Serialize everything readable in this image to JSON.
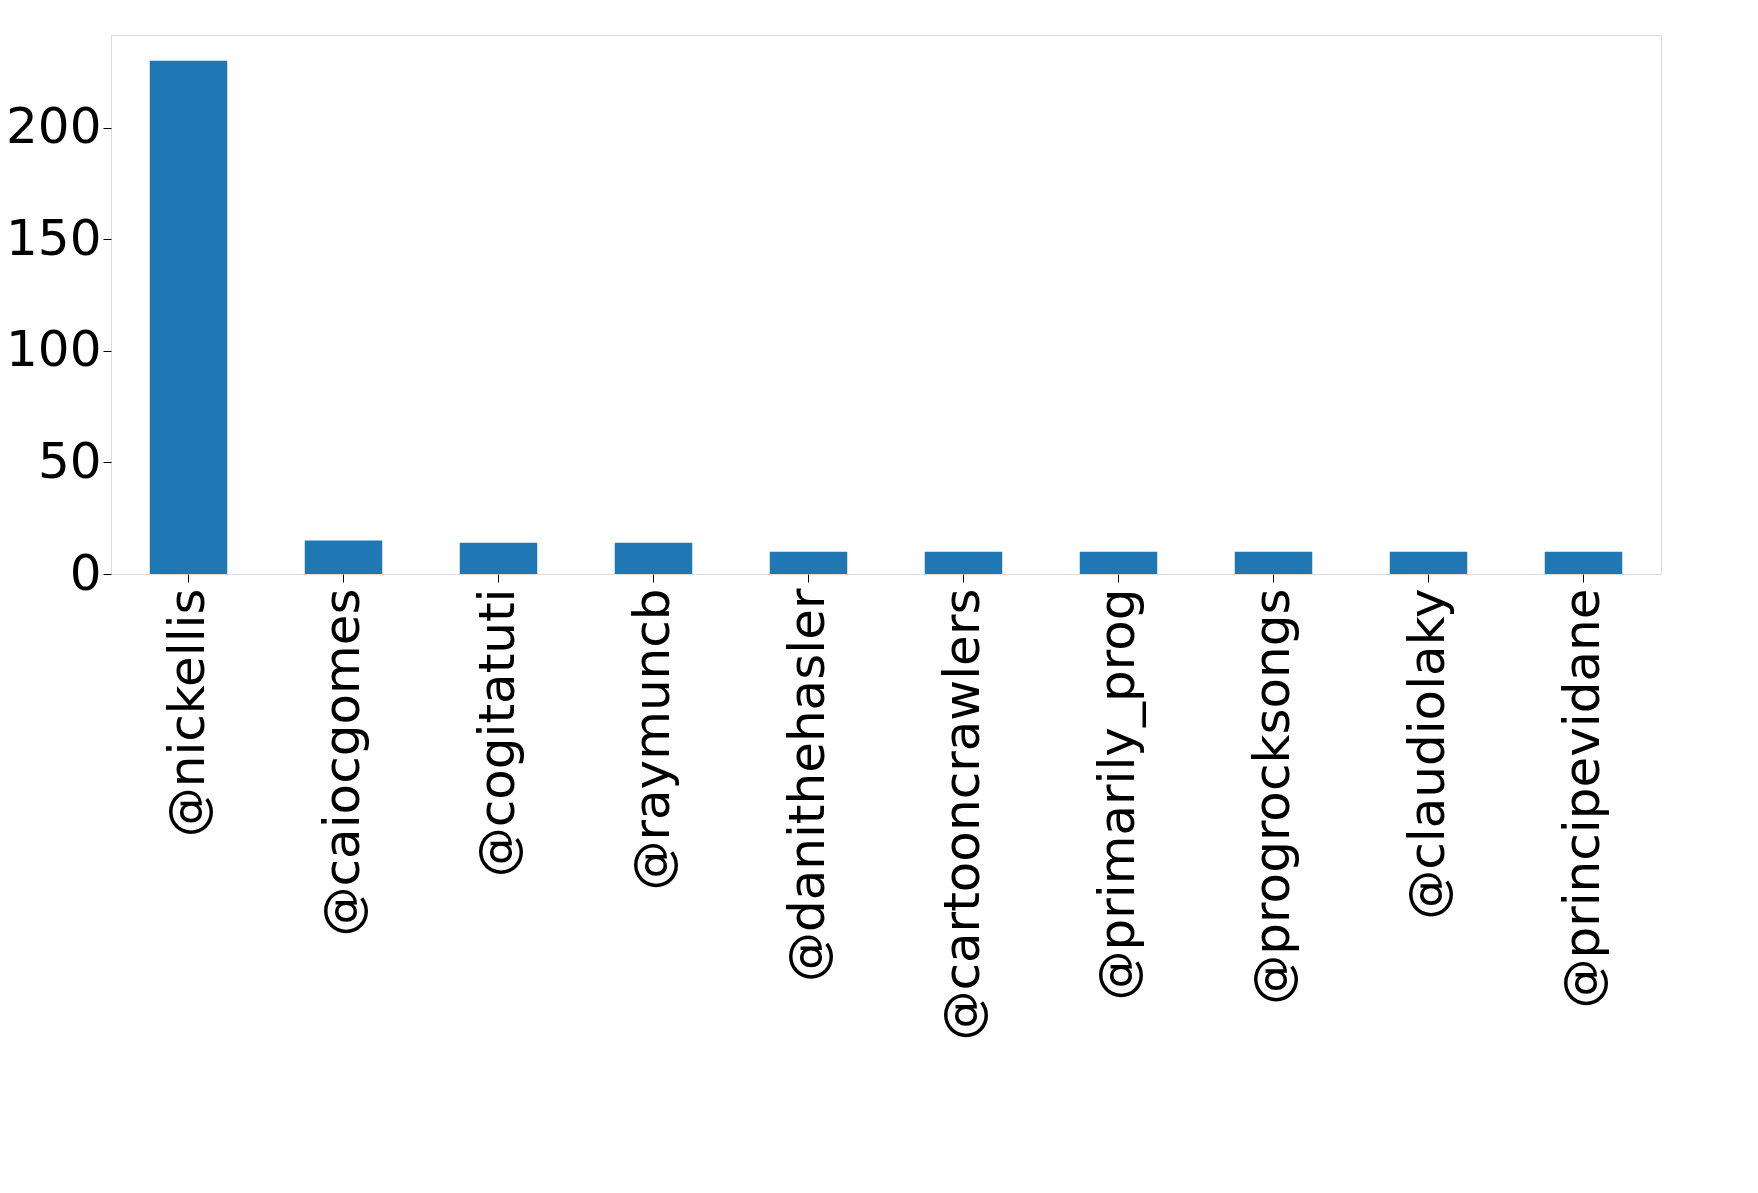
{
  "chart_data": {
    "type": "bar",
    "categories": [
      "@nickellis",
      "@caiocgomes",
      "@cogitatuti",
      "@raymuncb",
      "@danithehasler",
      "@cartooncrawlers",
      "@primarily_prog",
      "@progrocksongs",
      "@claudiolaky",
      "@principevidane"
    ],
    "values": [
      230,
      15,
      14,
      14,
      10,
      10,
      10,
      10,
      10,
      10
    ],
    "color": "#1f77b4",
    "ylim": [
      0,
      241.5
    ],
    "yticks": [
      0,
      50,
      100,
      150,
      200
    ],
    "grid": false,
    "legend": false
  }
}
